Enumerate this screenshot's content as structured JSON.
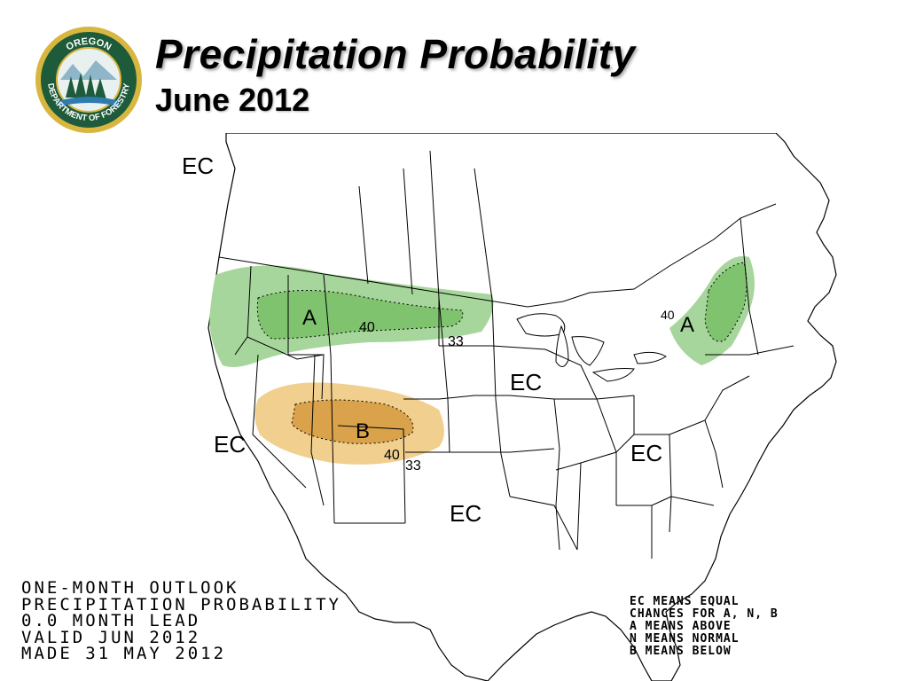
{
  "slide": {
    "title": "Precipitation Probability",
    "subtitle": "June 2012"
  },
  "logo": {
    "top_text": "OREGON",
    "bottom_text": "DEPARTMENT OF FORESTRY",
    "ring_color": "#1d5b3a",
    "rim_color": "#d9b640"
  },
  "map": {
    "labels": {
      "ec_pacific": "EC",
      "ec_southwest": "EC",
      "ec_midwest": "EC",
      "ec_southeast": "EC",
      "ec_texas": "EC",
      "above_northwest": "A",
      "above_northeast": "A",
      "below_southwest": "B",
      "contour_40_nw": "40",
      "contour_33_nw": "33",
      "contour_40_sw": "40",
      "contour_33_sw": "33",
      "contour_40_ne": "40"
    },
    "colors": {
      "above_33": "#a7d69c",
      "above_40": "#7fc36f",
      "below_33": "#f1d08f",
      "below_40": "#d9a24b",
      "land": "#ffffff",
      "borders": "#000000"
    }
  },
  "info_panel": {
    "lines": [
      "ONE-MONTH OUTLOOK",
      "PRECIPITATION PROBABILITY",
      "0.0 MONTH LEAD",
      "VALID JUN 2012",
      "MADE 31 MAY 2012"
    ]
  },
  "legend": {
    "lines": [
      "EC MEANS EQUAL",
      "CHANCES FOR A, N, B",
      "A MEANS ABOVE",
      "N MEANS NORMAL",
      "B MEANS BELOW"
    ]
  }
}
